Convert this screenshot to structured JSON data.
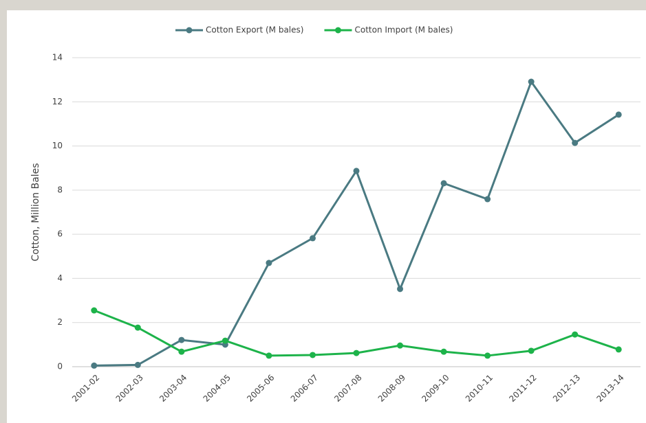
{
  "chart_data": {
    "type": "line",
    "y_label": "Cotton, Million Bales",
    "categories": [
      "2001-02",
      "2002-03",
      "2003-04",
      "2004-05",
      "2005-06",
      "2006-07",
      "2007-08",
      "2008-09",
      "2009-10",
      "2010-11",
      "2011-12",
      "2012-13",
      "2013-14"
    ],
    "series": [
      {
        "name": "Cotton Export (M bales)",
        "color": "#4a7a82",
        "values": [
          0.05,
          0.08,
          1.21,
          1.0,
          4.7,
          5.82,
          8.87,
          3.52,
          8.31,
          7.59,
          12.91,
          10.14,
          11.42
        ]
      },
      {
        "name": "Cotton Import (M bales)",
        "color": "#1db34a",
        "values": [
          2.55,
          1.77,
          0.68,
          1.18,
          0.5,
          0.53,
          0.62,
          0.96,
          0.68,
          0.5,
          0.72,
          1.46,
          0.78
        ]
      }
    ],
    "ylim": [
      0,
      14
    ],
    "yticks": [
      0,
      2,
      4,
      6,
      8,
      10,
      12,
      14
    ],
    "grid": true,
    "legend": "top"
  }
}
